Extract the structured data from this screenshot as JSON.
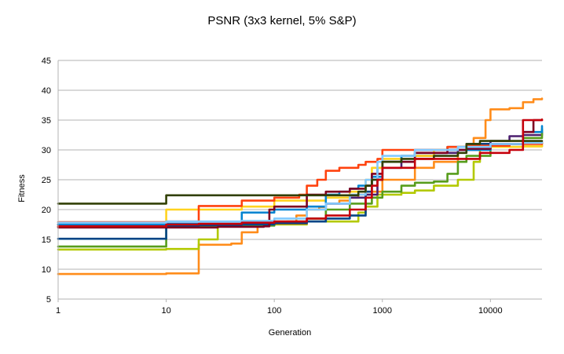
{
  "chart_data": {
    "type": "line",
    "title": "PSNR (3x3 kernel, 5% S&P)",
    "xlabel": "Generation",
    "ylabel": "Fitness",
    "x_scale": "log",
    "xlim": [
      1,
      30000
    ],
    "ylim": [
      5,
      45
    ],
    "x_ticks": [
      1,
      10,
      100,
      1000,
      10000
    ],
    "x_tick_labels": [
      "1",
      "10",
      "100",
      "1000",
      "10000"
    ],
    "y_ticks": [
      5,
      10,
      15,
      20,
      25,
      30,
      35,
      40,
      45
    ],
    "grid": "horizontal",
    "legend": "none",
    "series": [
      {
        "color": "#ff8c1a",
        "points": [
          [
            1,
            9.2
          ],
          [
            10,
            9.3
          ],
          [
            20,
            14.1
          ],
          [
            40,
            14.3
          ],
          [
            50,
            16.2
          ],
          [
            70,
            17.6
          ],
          [
            100,
            17.7
          ],
          [
            130,
            18
          ],
          [
            160,
            19
          ],
          [
            200,
            20
          ],
          [
            260,
            20.4
          ],
          [
            300,
            21
          ],
          [
            400,
            21.5
          ],
          [
            500,
            22
          ],
          [
            600,
            22.5
          ],
          [
            800,
            23
          ],
          [
            1000,
            25
          ],
          [
            2000,
            27
          ],
          [
            3000,
            28
          ],
          [
            5000,
            30.5
          ],
          [
            7000,
            32
          ],
          [
            9000,
            35
          ],
          [
            10000,
            36.8
          ],
          [
            15000,
            37
          ],
          [
            20000,
            38
          ],
          [
            25000,
            38.5
          ],
          [
            30000,
            38.6
          ]
        ]
      },
      {
        "color": "#b3c900",
        "points": [
          [
            1,
            13.3
          ],
          [
            10,
            13.4
          ],
          [
            20,
            15
          ],
          [
            30,
            17.4
          ],
          [
            50,
            17.4
          ],
          [
            100,
            17.5
          ],
          [
            150,
            17.5
          ],
          [
            200,
            18
          ],
          [
            400,
            18
          ],
          [
            600,
            19.5
          ],
          [
            700,
            20.5
          ],
          [
            800,
            20.5
          ],
          [
            900,
            22.5
          ],
          [
            1500,
            22.8
          ],
          [
            2000,
            23.2
          ],
          [
            3000,
            24
          ],
          [
            4000,
            24
          ],
          [
            5000,
            25
          ],
          [
            6000,
            25
          ],
          [
            7000,
            28
          ],
          [
            8000,
            30.5
          ],
          [
            20000,
            30.6
          ],
          [
            30000,
            30.8
          ]
        ]
      },
      {
        "color": "#4b1f6f",
        "points": [
          [
            1,
            17.5
          ],
          [
            10,
            17.6
          ],
          [
            30,
            17.6
          ],
          [
            60,
            17.6
          ],
          [
            100,
            17.7
          ],
          [
            200,
            18
          ],
          [
            300,
            21
          ],
          [
            500,
            22
          ],
          [
            700,
            22.5
          ],
          [
            900,
            25
          ],
          [
            1000,
            27
          ],
          [
            1500,
            28
          ],
          [
            2000,
            29
          ],
          [
            3000,
            29.5
          ],
          [
            5000,
            30
          ],
          [
            8000,
            31
          ],
          [
            10000,
            31.5
          ],
          [
            15000,
            32.3
          ],
          [
            20000,
            32.5
          ],
          [
            30000,
            33
          ]
        ]
      },
      {
        "color": "#579d1c",
        "points": [
          [
            1,
            13.8
          ],
          [
            10,
            17.2
          ],
          [
            20,
            17.3
          ],
          [
            50,
            17.3
          ],
          [
            100,
            18
          ],
          [
            200,
            18.5
          ],
          [
            300,
            20
          ],
          [
            500,
            21
          ],
          [
            800,
            22
          ],
          [
            1000,
            23
          ],
          [
            1500,
            24
          ],
          [
            2000,
            24.5
          ],
          [
            3000,
            24.7
          ],
          [
            4000,
            26
          ],
          [
            5000,
            28
          ],
          [
            6000,
            29
          ],
          [
            10000,
            30.5
          ],
          [
            15000,
            31
          ],
          [
            20000,
            32
          ],
          [
            30000,
            33.5
          ]
        ]
      },
      {
        "color": "#004586",
        "points": [
          [
            1,
            15.1
          ],
          [
            10,
            17.3
          ],
          [
            20,
            17.4
          ],
          [
            50,
            17.5
          ],
          [
            100,
            17.8
          ],
          [
            200,
            18
          ],
          [
            300,
            18.5
          ],
          [
            500,
            19
          ],
          [
            700,
            23
          ],
          [
            800,
            25
          ],
          [
            900,
            27
          ],
          [
            1000,
            28
          ],
          [
            1500,
            29
          ],
          [
            2000,
            30
          ],
          [
            4000,
            30.5
          ],
          [
            6000,
            31
          ],
          [
            10000,
            31
          ],
          [
            20000,
            31.1
          ],
          [
            30000,
            31.2
          ]
        ]
      },
      {
        "color": "#ffd320",
        "points": [
          [
            1,
            17.2
          ],
          [
            10,
            20
          ],
          [
            20,
            20
          ],
          [
            50,
            20.5
          ],
          [
            100,
            21.5
          ],
          [
            200,
            21.5
          ],
          [
            300,
            22
          ],
          [
            500,
            23
          ],
          [
            700,
            25
          ],
          [
            800,
            27
          ],
          [
            1000,
            28.5
          ],
          [
            1500,
            29
          ],
          [
            3000,
            30
          ],
          [
            5000,
            30.5
          ],
          [
            10000,
            30.5
          ],
          [
            20000,
            30.6
          ],
          [
            30000,
            30.7
          ]
        ]
      },
      {
        "color": "#ff420e",
        "points": [
          [
            1,
            17.9
          ],
          [
            10,
            18
          ],
          [
            20,
            20.6
          ],
          [
            40,
            20.6
          ],
          [
            50,
            21.5
          ],
          [
            100,
            22
          ],
          [
            170,
            22.5
          ],
          [
            200,
            24
          ],
          [
            250,
            25
          ],
          [
            300,
            26.5
          ],
          [
            350,
            26.5
          ],
          [
            400,
            27
          ],
          [
            500,
            27
          ],
          [
            600,
            27.5
          ],
          [
            700,
            28
          ],
          [
            900,
            28.5
          ],
          [
            1000,
            30
          ],
          [
            2000,
            30
          ],
          [
            4000,
            30.5
          ],
          [
            6000,
            30.7
          ],
          [
            10000,
            30.7
          ],
          [
            15000,
            31
          ],
          [
            20000,
            31
          ],
          [
            30000,
            31.2
          ]
        ]
      },
      {
        "color": "#0084d1",
        "points": [
          [
            1,
            17.5
          ],
          [
            10,
            17.6
          ],
          [
            30,
            17.6
          ],
          [
            50,
            19.5
          ],
          [
            100,
            20
          ],
          [
            200,
            20.5
          ],
          [
            300,
            22.5
          ],
          [
            400,
            23
          ],
          [
            500,
            23.5
          ],
          [
            600,
            24
          ],
          [
            700,
            24
          ],
          [
            800,
            25.5
          ],
          [
            1000,
            28
          ],
          [
            1500,
            29
          ],
          [
            2000,
            29.5
          ],
          [
            4000,
            30
          ],
          [
            10000,
            31
          ],
          [
            20000,
            33
          ],
          [
            30000,
            34
          ]
        ]
      },
      {
        "color": "#7e0021",
        "points": [
          [
            1,
            17
          ],
          [
            10,
            17
          ],
          [
            30,
            17.1
          ],
          [
            80,
            17.2
          ],
          [
            90,
            20
          ],
          [
            100,
            20.5
          ],
          [
            200,
            22.5
          ],
          [
            300,
            23
          ],
          [
            500,
            23.5
          ],
          [
            700,
            24
          ],
          [
            800,
            26
          ],
          [
            1000,
            28
          ],
          [
            2000,
            29.5
          ],
          [
            4000,
            30
          ],
          [
            6000,
            30.2
          ],
          [
            10000,
            31
          ],
          [
            20000,
            33
          ],
          [
            25000,
            35
          ],
          [
            30000,
            35
          ]
        ]
      },
      {
        "color": "#83caff",
        "points": [
          [
            1,
            17.8
          ],
          [
            10,
            18
          ],
          [
            20,
            18
          ],
          [
            50,
            18.1
          ],
          [
            100,
            18.5
          ],
          [
            200,
            20
          ],
          [
            300,
            21
          ],
          [
            500,
            22.5
          ],
          [
            700,
            25
          ],
          [
            900,
            28
          ],
          [
            1000,
            29
          ],
          [
            2000,
            30
          ],
          [
            5000,
            30.5
          ],
          [
            10000,
            31
          ],
          [
            20000,
            31.2
          ],
          [
            30000,
            31.3
          ]
        ]
      },
      {
        "color": "#314004",
        "points": [
          [
            1,
            21
          ],
          [
            10,
            22.4
          ],
          [
            20,
            22.4
          ],
          [
            100,
            22.4
          ],
          [
            200,
            22.4
          ],
          [
            300,
            22.4
          ],
          [
            500,
            22.4
          ],
          [
            600,
            23
          ],
          [
            700,
            24
          ],
          [
            800,
            25
          ],
          [
            1000,
            28
          ],
          [
            1500,
            28.5
          ],
          [
            3000,
            29
          ],
          [
            5000,
            29.5
          ],
          [
            6000,
            31
          ],
          [
            8000,
            31.5
          ],
          [
            20000,
            31.5
          ],
          [
            30000,
            31.5
          ]
        ]
      },
      {
        "color": "#c5000b",
        "points": [
          [
            1,
            17.2
          ],
          [
            10,
            17.5
          ],
          [
            20,
            17.6
          ],
          [
            50,
            17.8
          ],
          [
            100,
            18
          ],
          [
            200,
            18.5
          ],
          [
            300,
            19
          ],
          [
            500,
            20
          ],
          [
            700,
            22
          ],
          [
            800,
            24
          ],
          [
            900,
            25
          ],
          [
            1000,
            27
          ],
          [
            2000,
            28.5
          ],
          [
            3000,
            28.5
          ],
          [
            6000,
            28.5
          ],
          [
            8000,
            29.5
          ],
          [
            15000,
            30
          ],
          [
            20000,
            35
          ],
          [
            30000,
            35.1
          ]
        ]
      }
    ]
  }
}
